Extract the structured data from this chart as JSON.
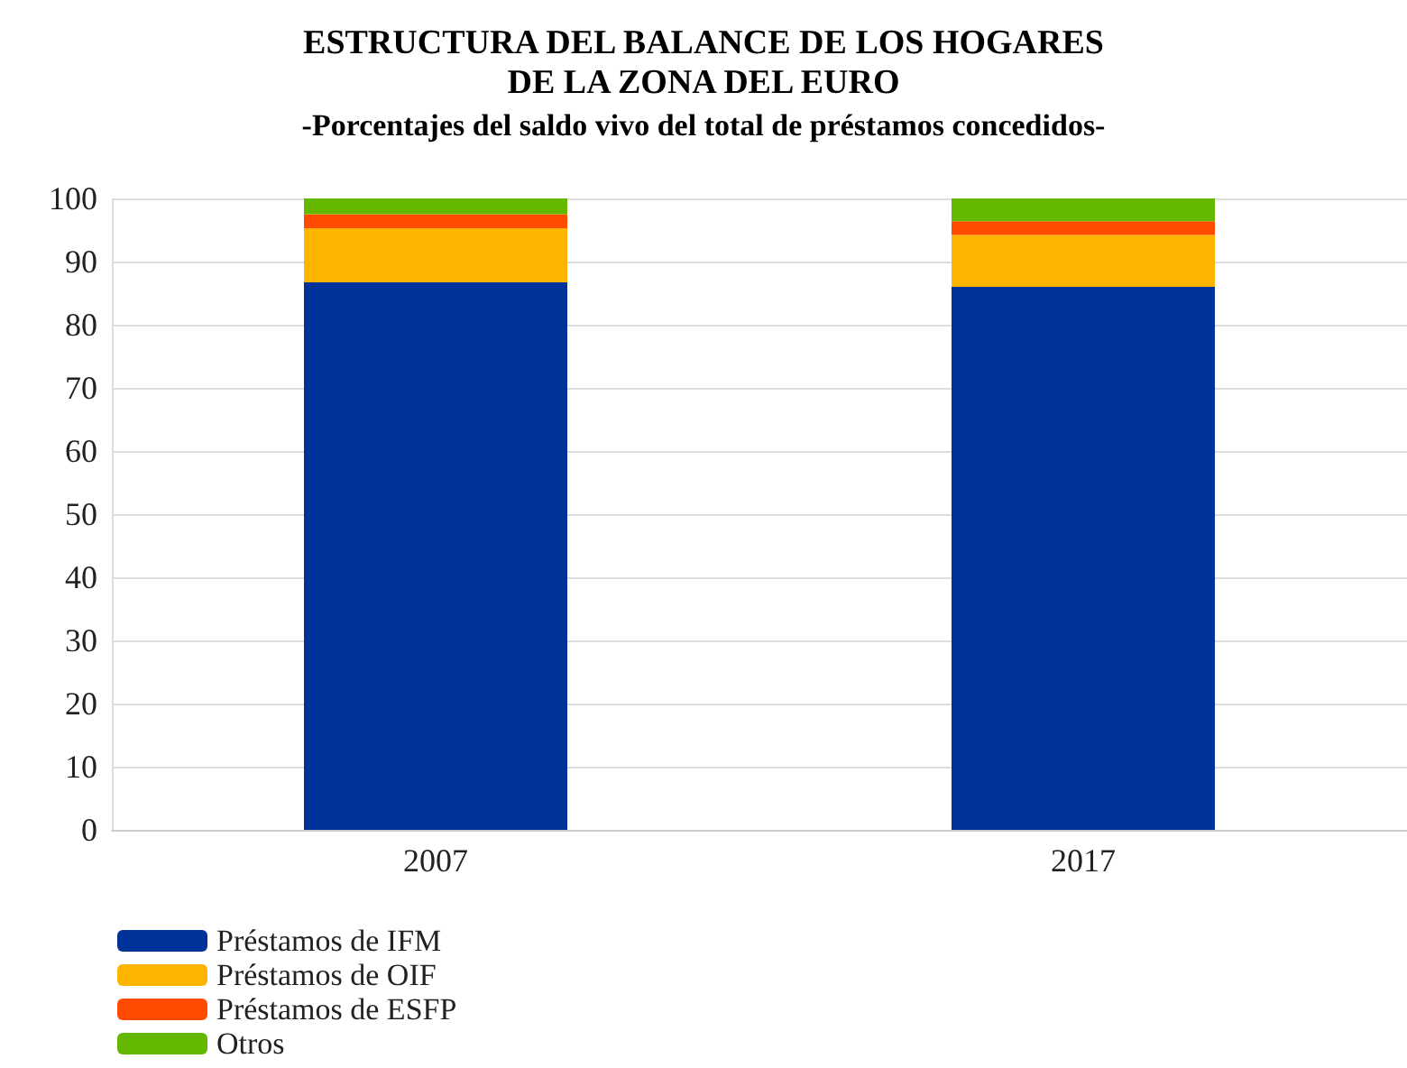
{
  "chart_data": {
    "type": "bar",
    "title": "ESTRUCTURA DEL BALANCE DE LOS HOGARES\nDE LA ZONA DEL EURO",
    "subtitle": "-Porcentajes del saldo vivo del total de préstamos concedidos-",
    "categories": [
      "2007",
      "2017"
    ],
    "stacked": true,
    "series": [
      {
        "name": "Préstamos de IFM",
        "color": "#003299",
        "values": [
          86.7,
          86.0
        ]
      },
      {
        "name": "Préstamos de OIF",
        "color": "#ffb400",
        "values": [
          8.6,
          8.2
        ]
      },
      {
        "name": "Préstamos de ESFP",
        "color": "#ff4b00",
        "values": [
          2.2,
          2.2
        ]
      },
      {
        "name": "Otros",
        "color": "#65b800",
        "values": [
          2.5,
          3.6
        ]
      }
    ],
    "ylim": [
      0,
      100
    ],
    "yticks": [
      0,
      10,
      20,
      30,
      40,
      50,
      60,
      70,
      80,
      90,
      100
    ],
    "grid": true,
    "legend": "bottom left"
  }
}
